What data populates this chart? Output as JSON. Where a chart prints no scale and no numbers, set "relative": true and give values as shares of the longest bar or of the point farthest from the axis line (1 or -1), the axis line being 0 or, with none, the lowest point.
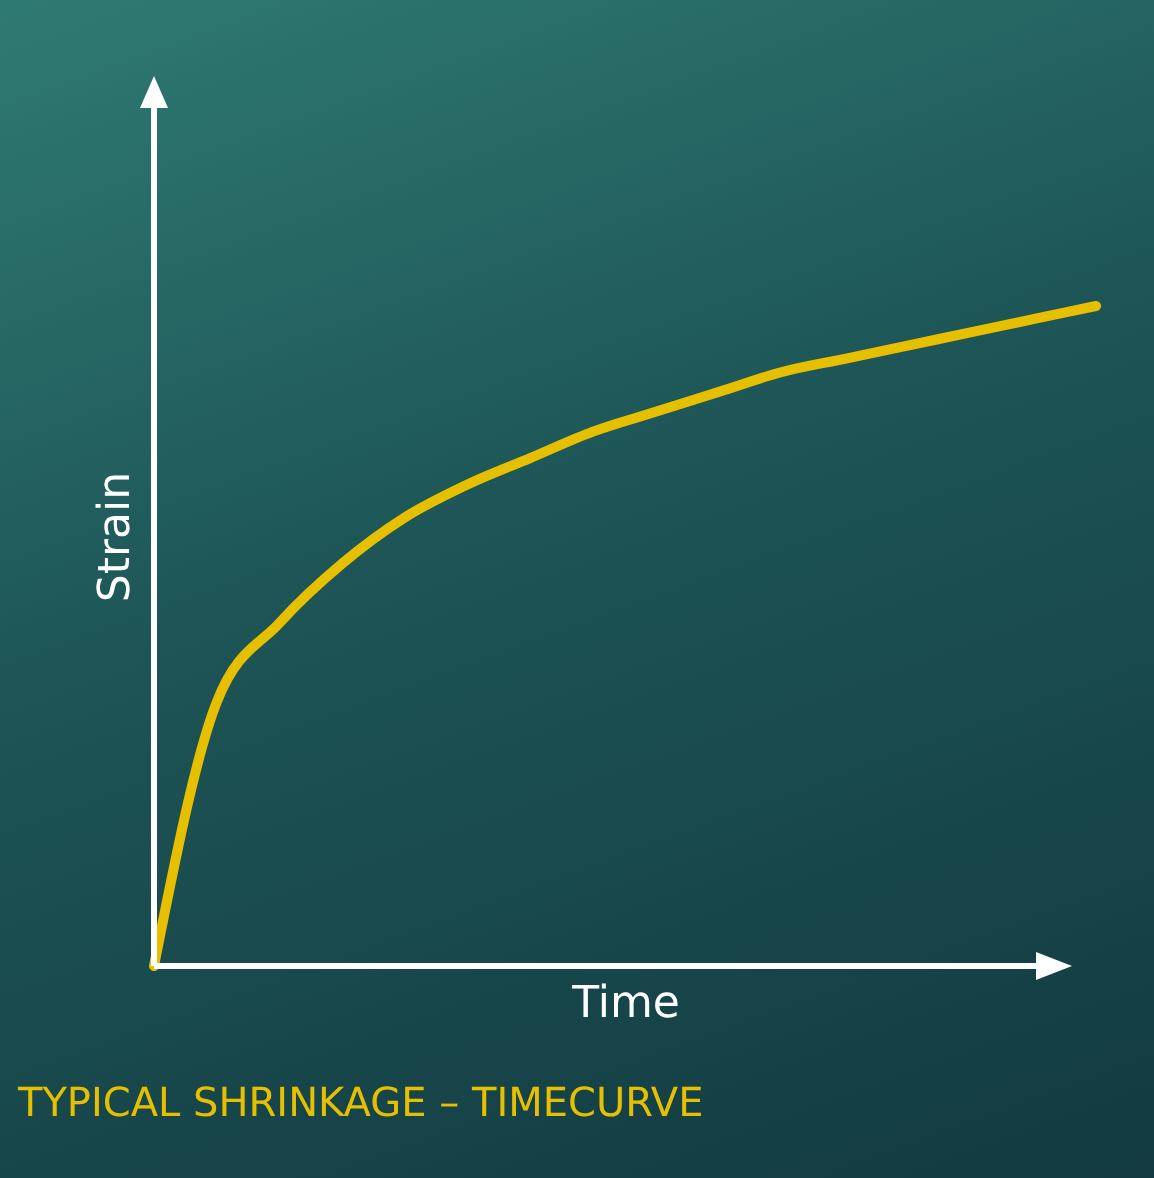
{
  "chart_data": {
    "type": "line",
    "title": "TYPICAL SHRINKAGE – TIMECURVE",
    "xlabel": "Time",
    "ylabel": "Strain",
    "relative": true,
    "marker": "none",
    "categories": [
      null,
      null,
      null,
      null,
      null,
      null,
      null,
      null,
      null,
      null,
      null,
      null,
      null,
      null,
      null,
      null
    ],
    "series": [
      {
        "color": "#e6c000",
        "values": [
          0,
          0.4,
          0.52,
          0.61,
          0.68,
          0.73,
          0.77,
          0.81,
          0.84,
          0.87,
          0.9,
          0.92,
          0.94,
          0.96,
          0.98,
          1
        ]
      }
    ]
  }
}
